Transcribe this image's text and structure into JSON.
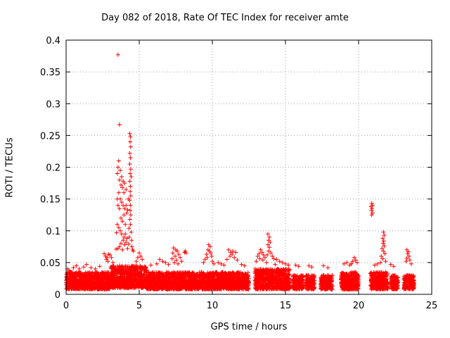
{
  "chart_data": {
    "type": "scatter",
    "title": "Day 082 of 2018, Rate Of TEC Index for receiver amte",
    "xlabel": "GPS time / hours",
    "ylabel": "ROTI / TECUs",
    "xlim": [
      0,
      25
    ],
    "ylim": [
      0,
      0.4
    ],
    "xticks": [
      "0",
      "5",
      "10",
      "15",
      "20",
      "25"
    ],
    "yticks": [
      "0",
      "0.05",
      "0.1",
      "0.15",
      "0.2",
      "0.25",
      "0.3",
      "0.35",
      "0.4"
    ],
    "grid": true,
    "marker": "+",
    "series_color": "#ff0000",
    "background_band": [
      {
        "x_start": 0.0,
        "x_end": 3.0,
        "y_min": 0.008,
        "y_max": 0.035
      },
      {
        "x_start": 3.0,
        "x_end": 5.5,
        "y_min": 0.01,
        "y_max": 0.045
      },
      {
        "x_start": 5.5,
        "x_end": 9.0,
        "y_min": 0.008,
        "y_max": 0.035
      },
      {
        "x_start": 9.0,
        "x_end": 12.5,
        "y_min": 0.008,
        "y_max": 0.035
      },
      {
        "x_start": 12.9,
        "x_end": 15.3,
        "y_min": 0.008,
        "y_max": 0.04
      },
      {
        "x_start": 15.5,
        "x_end": 16.2,
        "y_min": 0.008,
        "y_max": 0.03
      },
      {
        "x_start": 16.4,
        "x_end": 17.0,
        "y_min": 0.008,
        "y_max": 0.03
      },
      {
        "x_start": 17.4,
        "x_end": 18.2,
        "y_min": 0.008,
        "y_max": 0.03
      },
      {
        "x_start": 18.8,
        "x_end": 20.0,
        "y_min": 0.008,
        "y_max": 0.035
      },
      {
        "x_start": 20.8,
        "x_end": 22.0,
        "y_min": 0.008,
        "y_max": 0.035
      },
      {
        "x_start": 22.2,
        "x_end": 22.7,
        "y_min": 0.008,
        "y_max": 0.03
      },
      {
        "x_start": 23.1,
        "x_end": 23.8,
        "y_min": 0.008,
        "y_max": 0.03
      }
    ],
    "points": [
      [
        3.55,
        0.377
      ],
      [
        3.65,
        0.267
      ],
      [
        4.35,
        0.253
      ],
      [
        4.4,
        0.248
      ],
      [
        4.38,
        0.24
      ],
      [
        4.42,
        0.232
      ],
      [
        4.36,
        0.222
      ],
      [
        4.4,
        0.215
      ],
      [
        4.35,
        0.205
      ],
      [
        4.42,
        0.197
      ],
      [
        4.38,
        0.19
      ],
      [
        4.45,
        0.185
      ],
      [
        4.36,
        0.178
      ],
      [
        4.4,
        0.17
      ],
      [
        4.38,
        0.162
      ],
      [
        4.42,
        0.155
      ],
      [
        4.35,
        0.148
      ],
      [
        4.4,
        0.14
      ],
      [
        4.38,
        0.132
      ],
      [
        4.42,
        0.125
      ],
      [
        4.36,
        0.118
      ],
      [
        4.4,
        0.11
      ],
      [
        4.3,
        0.104
      ],
      [
        4.45,
        0.098
      ],
      [
        4.32,
        0.09
      ],
      [
        4.48,
        0.085
      ],
      [
        4.28,
        0.079
      ],
      [
        4.5,
        0.075
      ],
      [
        4.55,
        0.07
      ],
      [
        4.6,
        0.068
      ],
      [
        3.6,
        0.21
      ],
      [
        3.55,
        0.2
      ],
      [
        3.7,
        0.195
      ],
      [
        3.5,
        0.19
      ],
      [
        3.8,
        0.185
      ],
      [
        3.65,
        0.18
      ],
      [
        3.9,
        0.178
      ],
      [
        3.75,
        0.172
      ],
      [
        4.0,
        0.175
      ],
      [
        3.85,
        0.168
      ],
      [
        4.1,
        0.165
      ],
      [
        3.95,
        0.16
      ],
      [
        3.6,
        0.16
      ],
      [
        3.5,
        0.15
      ],
      [
        3.7,
        0.15
      ],
      [
        3.8,
        0.145
      ],
      [
        3.55,
        0.14
      ],
      [
        3.65,
        0.135
      ],
      [
        3.9,
        0.14
      ],
      [
        4.0,
        0.135
      ],
      [
        4.1,
        0.14
      ],
      [
        4.2,
        0.133
      ],
      [
        4.25,
        0.15
      ],
      [
        4.15,
        0.128
      ],
      [
        3.95,
        0.125
      ],
      [
        3.75,
        0.12
      ],
      [
        3.85,
        0.115
      ],
      [
        4.05,
        0.11
      ],
      [
        3.5,
        0.11
      ],
      [
        3.6,
        0.105
      ],
      [
        3.45,
        0.097
      ],
      [
        3.7,
        0.1
      ],
      [
        3.8,
        0.095
      ],
      [
        3.95,
        0.09
      ],
      [
        4.05,
        0.095
      ],
      [
        4.15,
        0.088
      ],
      [
        3.9,
        0.085
      ],
      [
        3.75,
        0.08
      ],
      [
        4.0,
        0.078
      ],
      [
        4.1,
        0.082
      ],
      [
        3.65,
        0.075
      ],
      [
        3.55,
        0.072
      ],
      [
        3.42,
        0.071
      ],
      [
        3.85,
        0.07
      ],
      [
        4.2,
        0.072
      ],
      [
        2.6,
        0.064
      ],
      [
        2.7,
        0.06
      ],
      [
        2.8,
        0.058
      ],
      [
        2.9,
        0.063
      ],
      [
        2.75,
        0.055
      ],
      [
        3.0,
        0.062
      ],
      [
        2.85,
        0.052
      ],
      [
        3.1,
        0.058
      ],
      [
        3.2,
        0.05
      ],
      [
        5.0,
        0.065
      ],
      [
        5.1,
        0.06
      ],
      [
        4.9,
        0.058
      ],
      [
        5.2,
        0.055
      ],
      [
        4.8,
        0.052
      ],
      [
        0.1,
        0.04
      ],
      [
        0.2,
        0.038
      ],
      [
        0.5,
        0.042
      ],
      [
        0.7,
        0.045
      ],
      [
        0.9,
        0.04
      ],
      [
        1.2,
        0.043
      ],
      [
        1.4,
        0.047
      ],
      [
        1.7,
        0.042
      ],
      [
        2.0,
        0.04
      ],
      [
        2.3,
        0.044
      ],
      [
        7.35,
        0.073
      ],
      [
        7.5,
        0.07
      ],
      [
        7.6,
        0.068
      ],
      [
        7.3,
        0.065
      ],
      [
        7.7,
        0.063
      ],
      [
        7.45,
        0.06
      ],
      [
        7.8,
        0.058
      ],
      [
        7.25,
        0.056
      ],
      [
        7.55,
        0.054
      ],
      [
        7.9,
        0.052
      ],
      [
        7.4,
        0.05
      ],
      [
        7.65,
        0.048
      ],
      [
        8.15,
        0.068
      ],
      [
        8.2,
        0.065
      ],
      [
        8.1,
        0.066
      ],
      [
        6.4,
        0.055
      ],
      [
        6.6,
        0.052
      ],
      [
        6.8,
        0.05
      ],
      [
        6.2,
        0.048
      ],
      [
        7.0,
        0.047
      ],
      [
        5.8,
        0.046
      ],
      [
        9.75,
        0.078
      ],
      [
        9.85,
        0.075
      ],
      [
        9.7,
        0.07
      ],
      [
        9.8,
        0.068
      ],
      [
        9.9,
        0.065
      ],
      [
        9.6,
        0.063
      ],
      [
        9.95,
        0.06
      ],
      [
        9.65,
        0.058
      ],
      [
        9.5,
        0.055
      ],
      [
        10.0,
        0.052
      ],
      [
        9.4,
        0.05
      ],
      [
        10.1,
        0.048
      ],
      [
        11.1,
        0.07
      ],
      [
        11.25,
        0.066
      ],
      [
        11.4,
        0.068
      ],
      [
        11.6,
        0.066
      ],
      [
        11.35,
        0.063
      ],
      [
        11.2,
        0.06
      ],
      [
        11.5,
        0.058
      ],
      [
        11.0,
        0.055
      ],
      [
        11.7,
        0.054
      ],
      [
        10.4,
        0.05
      ],
      [
        10.6,
        0.048
      ],
      [
        10.8,
        0.046
      ],
      [
        12.0,
        0.047
      ],
      [
        12.2,
        0.045
      ],
      [
        13.8,
        0.095
      ],
      [
        13.9,
        0.09
      ],
      [
        13.85,
        0.085
      ],
      [
        13.95,
        0.082
      ],
      [
        13.8,
        0.078
      ],
      [
        13.9,
        0.074
      ],
      [
        13.85,
        0.068
      ],
      [
        14.0,
        0.065
      ],
      [
        13.75,
        0.062
      ],
      [
        13.3,
        0.07
      ],
      [
        13.4,
        0.066
      ],
      [
        13.2,
        0.064
      ],
      [
        13.5,
        0.062
      ],
      [
        13.1,
        0.06
      ],
      [
        13.6,
        0.058
      ],
      [
        13.25,
        0.056
      ],
      [
        13.45,
        0.054
      ],
      [
        13.0,
        0.052
      ],
      [
        13.7,
        0.05
      ],
      [
        14.1,
        0.06
      ],
      [
        14.2,
        0.056
      ],
      [
        14.4,
        0.055
      ],
      [
        14.6,
        0.052
      ],
      [
        14.8,
        0.05
      ],
      [
        15.0,
        0.048
      ],
      [
        15.2,
        0.046
      ],
      [
        14.3,
        0.047
      ],
      [
        15.7,
        0.046
      ],
      [
        15.9,
        0.044
      ],
      [
        16.6,
        0.045
      ],
      [
        16.8,
        0.043
      ],
      [
        17.6,
        0.045
      ],
      [
        17.9,
        0.042
      ],
      [
        19.7,
        0.058
      ],
      [
        19.8,
        0.054
      ],
      [
        19.6,
        0.052
      ],
      [
        19.9,
        0.05
      ],
      [
        19.5,
        0.048
      ],
      [
        19.2,
        0.05
      ],
      [
        19.0,
        0.048
      ],
      [
        19.4,
        0.046
      ],
      [
        20.9,
        0.143
      ],
      [
        20.95,
        0.14
      ],
      [
        20.85,
        0.138
      ],
      [
        20.92,
        0.135
      ],
      [
        20.88,
        0.132
      ],
      [
        20.95,
        0.128
      ],
      [
        20.9,
        0.125
      ],
      [
        21.7,
        0.098
      ],
      [
        21.75,
        0.093
      ],
      [
        21.65,
        0.088
      ],
      [
        21.72,
        0.084
      ],
      [
        21.68,
        0.08
      ],
      [
        21.75,
        0.076
      ],
      [
        21.6,
        0.072
      ],
      [
        21.7,
        0.068
      ],
      [
        21.8,
        0.064
      ],
      [
        21.55,
        0.06
      ],
      [
        21.65,
        0.056
      ],
      [
        21.85,
        0.052
      ],
      [
        21.5,
        0.05
      ],
      [
        21.3,
        0.048
      ],
      [
        21.1,
        0.046
      ],
      [
        22.2,
        0.047
      ],
      [
        22.4,
        0.044
      ],
      [
        23.3,
        0.07
      ],
      [
        23.4,
        0.067
      ],
      [
        23.35,
        0.064
      ],
      [
        23.45,
        0.06
      ],
      [
        23.3,
        0.057
      ],
      [
        23.5,
        0.054
      ],
      [
        23.25,
        0.052
      ],
      [
        23.6,
        0.048
      ]
    ]
  }
}
